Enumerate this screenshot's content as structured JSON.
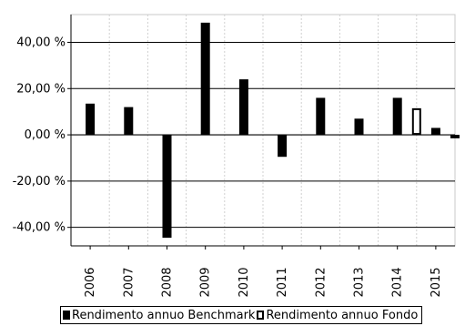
{
  "chart_data": {
    "type": "bar",
    "categories": [
      "2006",
      "2007",
      "2008",
      "2009",
      "2010",
      "2011",
      "2012",
      "2013",
      "2014",
      "2015"
    ],
    "series": [
      {
        "name": "Rendimento annuo Benchmark",
        "color": "#000000",
        "fill": "solid",
        "values": [
          13.5,
          12.0,
          -44.5,
          48.5,
          24.0,
          -9.5,
          16.0,
          7.0,
          16.0,
          3.0
        ]
      },
      {
        "name": "Rendimento annuo Fondo",
        "color": "#000000",
        "fill": "hollow",
        "values": [
          null,
          null,
          null,
          null,
          null,
          null,
          null,
          null,
          11.5,
          -1.5
        ]
      }
    ],
    "ylim": [
      -48,
      52
    ],
    "yticks": [
      40,
      20,
      0,
      -20,
      -40
    ],
    "ytick_labels": [
      "40,00 %",
      "20,00 %",
      "0,00 %",
      "-20,00 %",
      "-40,00 %"
    ],
    "grid": true,
    "legend": "bottom",
    "title": "",
    "xlabel": "",
    "ylabel": ""
  }
}
